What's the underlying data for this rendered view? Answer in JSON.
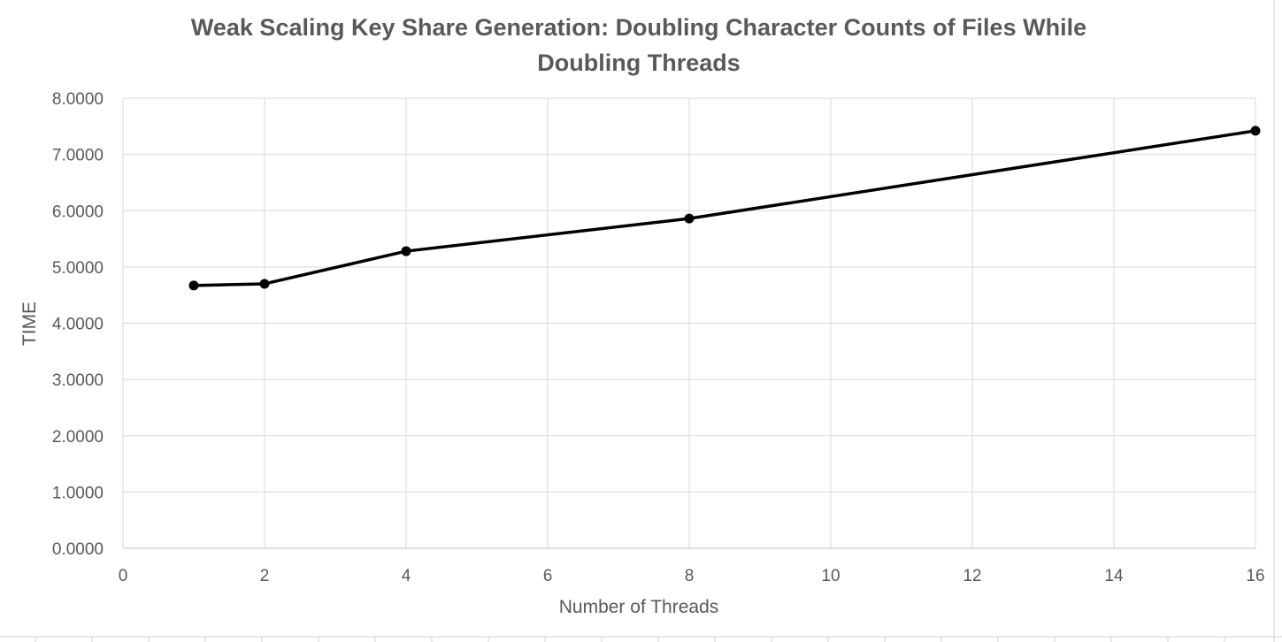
{
  "chart_data": {
    "type": "line",
    "title_lines": [
      "Weak Scaling Key Share Generation: Doubling Character Counts of Files While",
      "Doubling Threads"
    ],
    "xlabel": "Number of Threads",
    "ylabel": "TIME",
    "xlim": [
      0,
      16
    ],
    "ylim": [
      0,
      8
    ],
    "x_ticks": [
      0,
      2,
      4,
      6,
      8,
      10,
      12,
      14,
      16
    ],
    "y_ticks": [
      0,
      1,
      2,
      3,
      4,
      5,
      6,
      7,
      8
    ],
    "x_tick_labels": [
      "0",
      "2",
      "4",
      "6",
      "8",
      "10",
      "12",
      "14",
      "16"
    ],
    "y_tick_labels": [
      "0.0000",
      "1.0000",
      "2.0000",
      "3.0000",
      "4.0000",
      "5.0000",
      "6.0000",
      "7.0000",
      "8.0000"
    ],
    "grid": true,
    "legend": "none",
    "series": [
      {
        "color": "#000000",
        "x": [
          1,
          2,
          4,
          8,
          16
        ],
        "y": [
          4.67,
          4.7,
          5.28,
          5.86,
          7.42
        ]
      }
    ]
  }
}
